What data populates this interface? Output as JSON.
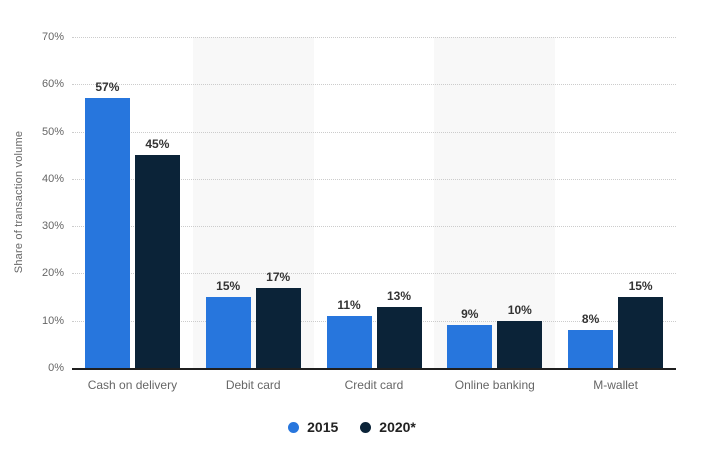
{
  "chart_data": {
    "type": "bar",
    "title": "",
    "ylabel": "Share of transaction volume",
    "xlabel": "",
    "categories": [
      "Cash on delivery",
      "Debit card",
      "Credit card",
      "Online banking",
      "M-wallet"
    ],
    "series": [
      {
        "name": "2015",
        "color": "#2776dd",
        "values": [
          57,
          15,
          11,
          9,
          8
        ]
      },
      {
        "name": "2020*",
        "color": "#0b2338",
        "values": [
          45,
          17,
          13,
          10,
          15
        ]
      }
    ],
    "value_suffix": "%",
    "ylim": [
      0,
      70
    ],
    "ytick_step": 10,
    "yticks": [
      "0%",
      "10%",
      "20%",
      "30%",
      "40%",
      "50%",
      "60%",
      "70%"
    ],
    "grid": "dotted-horizontal",
    "legend_position": "bottom",
    "plot_background": "alternating-category-bands"
  },
  "colors": {
    "background": "#ffffff",
    "band": "#f8f8f8",
    "gridline": "#cccccc",
    "axis_line": "#1f1f1f",
    "tick_text": "#666666",
    "category_text": "#666666",
    "value_label_text": "#333333",
    "legend_text": "#222222"
  }
}
